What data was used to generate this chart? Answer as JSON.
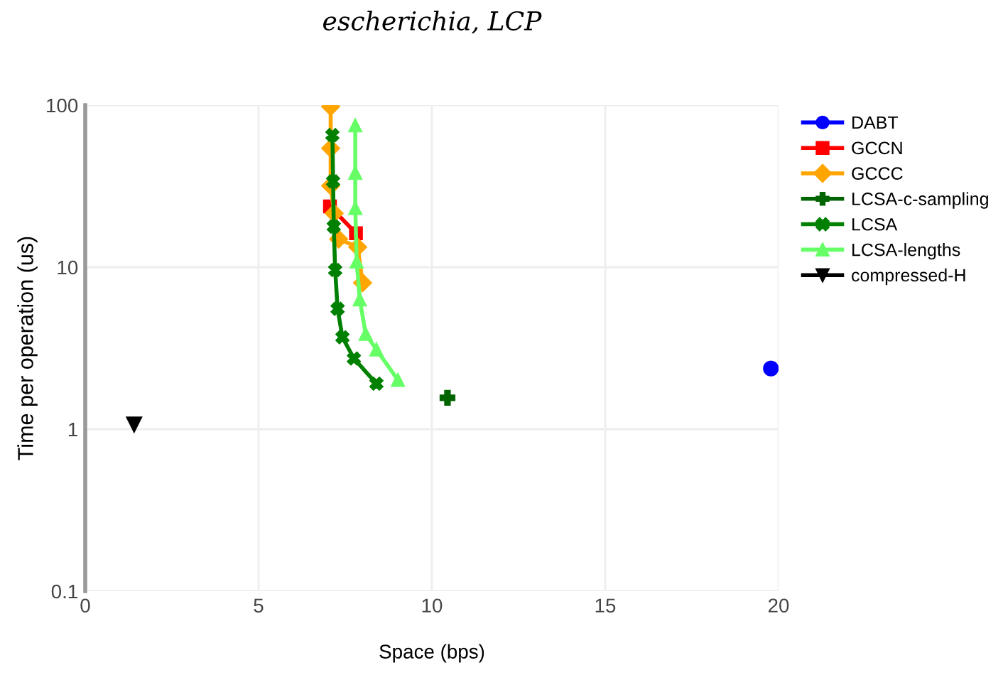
{
  "chart_data": {
    "type": "line",
    "title": "escherichia, LCP",
    "xlabel": "Space (bps)",
    "ylabel": "Time per operation (us)",
    "xlim": [
      0,
      20
    ],
    "xticks": [
      0,
      5,
      10,
      15,
      20
    ],
    "log": "y",
    "ylim": [
      0.1,
      100
    ],
    "yticks": [
      0.1,
      1,
      10,
      100
    ],
    "grid": true,
    "legend": "right",
    "series": [
      {
        "name": "DABT",
        "color": "#0000ff",
        "marker": "circle",
        "type": "scatter",
        "x": [
          19.78
        ],
        "values": [
          2.37
        ]
      },
      {
        "name": "GCCN",
        "color": "#ff0000",
        "marker": "square",
        "x": [
          7.06,
          7.81
        ],
        "values": [
          23.7,
          16.2
        ]
      },
      {
        "name": "GCCC",
        "color": "#ffa500",
        "marker": "diamond",
        "x": [
          7.08,
          7.08,
          7.08,
          7.18,
          7.31,
          7.86,
          8.0
        ],
        "values": [
          98,
          54.2,
          31.8,
          21.5,
          14.9,
          13.3,
          8.0
        ]
      },
      {
        "name": "LCSA-c-sampling",
        "color": "#006400",
        "marker": "cross",
        "type": "scatter",
        "x": [
          10.45
        ],
        "values": [
          1.56
        ]
      },
      {
        "name": "LCSA",
        "color": "#008000",
        "marker": "x",
        "x": [
          7.13,
          7.15,
          7.17,
          7.21,
          7.28,
          7.42,
          7.75,
          8.4
        ],
        "values": [
          65.4,
          33.8,
          17.8,
          9.6,
          5.53,
          3.69,
          2.73,
          1.91
        ]
      },
      {
        "name": "LCSA-lengths",
        "color": "#66ff66",
        "marker": "triangle",
        "x": [
          7.79,
          7.79,
          7.79,
          7.83,
          7.92,
          8.09,
          8.4,
          9.02
        ],
        "values": [
          74.9,
          38.2,
          23.1,
          10.8,
          6.32,
          3.87,
          3.1,
          2.01
        ]
      },
      {
        "name": "compressed-H",
        "color": "#000000",
        "marker": "triangle_down",
        "type": "scatter",
        "x": [
          1.41
        ],
        "values": [
          1.07
        ]
      }
    ]
  }
}
